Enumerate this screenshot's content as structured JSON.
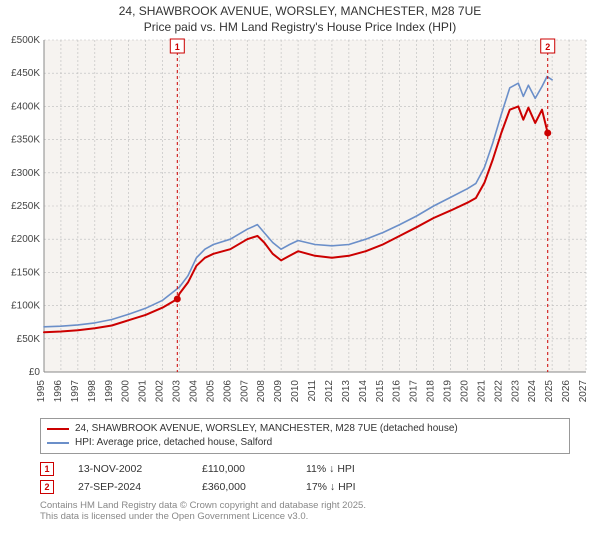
{
  "title_line1": "24, SHAWBROOK AVENUE, WORSLEY, MANCHESTER, M28 7UE",
  "title_line2": "Price paid vs. HM Land Registry's House Price Index (HPI)",
  "chart": {
    "type": "line",
    "plot_bg": "#f6f3f0",
    "page_bg": "#ffffff",
    "grid_color": "#bbbbbb",
    "axis_color": "#888888",
    "x_years": [
      1995,
      1996,
      1997,
      1998,
      1999,
      2000,
      2001,
      2002,
      2003,
      2004,
      2005,
      2006,
      2007,
      2008,
      2009,
      2010,
      2011,
      2012,
      2013,
      2014,
      2015,
      2016,
      2017,
      2018,
      2019,
      2020,
      2021,
      2022,
      2023,
      2024,
      2025,
      2026,
      2027
    ],
    "x_min": 1995,
    "x_max": 2027,
    "y_ticks": [
      0,
      50000,
      100000,
      150000,
      200000,
      250000,
      300000,
      350000,
      400000,
      450000,
      500000
    ],
    "y_tick_labels": [
      "£0",
      "£50K",
      "£100K",
      "£150K",
      "£200K",
      "£250K",
      "£300K",
      "£350K",
      "£400K",
      "£450K",
      "£500K"
    ],
    "y_min": 0,
    "y_max": 500000,
    "x_tick_fontsize": 10,
    "y_tick_fontsize": 10,
    "series": [
      {
        "name": "price_paid",
        "label": "24, SHAWBROOK AVENUE, WORSLEY, MANCHESTER, M28 7UE (detached house)",
        "color": "#cc0000",
        "width": 2,
        "points": [
          [
            1995.0,
            60000
          ],
          [
            1996.0,
            61000
          ],
          [
            1997.0,
            63000
          ],
          [
            1998.0,
            66000
          ],
          [
            1999.0,
            70000
          ],
          [
            2000.0,
            78000
          ],
          [
            2001.0,
            86000
          ],
          [
            2002.0,
            97000
          ],
          [
            2002.87,
            110000
          ],
          [
            2003.0,
            118000
          ],
          [
            2003.5,
            135000
          ],
          [
            2004.0,
            160000
          ],
          [
            2004.5,
            172000
          ],
          [
            2005.0,
            178000
          ],
          [
            2006.0,
            185000
          ],
          [
            2007.0,
            200000
          ],
          [
            2007.6,
            205000
          ],
          [
            2008.0,
            195000
          ],
          [
            2008.5,
            178000
          ],
          [
            2009.0,
            168000
          ],
          [
            2009.5,
            175000
          ],
          [
            2010.0,
            182000
          ],
          [
            2011.0,
            175000
          ],
          [
            2012.0,
            172000
          ],
          [
            2013.0,
            175000
          ],
          [
            2014.0,
            182000
          ],
          [
            2015.0,
            192000
          ],
          [
            2016.0,
            205000
          ],
          [
            2017.0,
            218000
          ],
          [
            2018.0,
            232000
          ],
          [
            2019.0,
            243000
          ],
          [
            2020.0,
            255000
          ],
          [
            2020.5,
            262000
          ],
          [
            2021.0,
            285000
          ],
          [
            2021.5,
            320000
          ],
          [
            2022.0,
            360000
          ],
          [
            2022.5,
            395000
          ],
          [
            2023.0,
            400000
          ],
          [
            2023.3,
            380000
          ],
          [
            2023.6,
            398000
          ],
          [
            2024.0,
            375000
          ],
          [
            2024.4,
            395000
          ],
          [
            2024.74,
            360000
          ]
        ]
      },
      {
        "name": "hpi",
        "label": "HPI: Average price, detached house, Salford",
        "color": "#6b8fc9",
        "width": 1.6,
        "points": [
          [
            1995.0,
            68000
          ],
          [
            1996.0,
            69000
          ],
          [
            1997.0,
            71000
          ],
          [
            1998.0,
            74000
          ],
          [
            1999.0,
            79000
          ],
          [
            2000.0,
            87000
          ],
          [
            2001.0,
            96000
          ],
          [
            2002.0,
            108000
          ],
          [
            2003.0,
            128000
          ],
          [
            2003.5,
            145000
          ],
          [
            2004.0,
            172000
          ],
          [
            2004.5,
            185000
          ],
          [
            2005.0,
            192000
          ],
          [
            2006.0,
            200000
          ],
          [
            2007.0,
            215000
          ],
          [
            2007.6,
            222000
          ],
          [
            2008.0,
            210000
          ],
          [
            2008.5,
            195000
          ],
          [
            2009.0,
            185000
          ],
          [
            2009.5,
            192000
          ],
          [
            2010.0,
            198000
          ],
          [
            2011.0,
            192000
          ],
          [
            2012.0,
            190000
          ],
          [
            2013.0,
            192000
          ],
          [
            2014.0,
            200000
          ],
          [
            2015.0,
            210000
          ],
          [
            2016.0,
            222000
          ],
          [
            2017.0,
            235000
          ],
          [
            2018.0,
            250000
          ],
          [
            2019.0,
            263000
          ],
          [
            2020.0,
            276000
          ],
          [
            2020.5,
            284000
          ],
          [
            2021.0,
            308000
          ],
          [
            2021.5,
            345000
          ],
          [
            2022.0,
            388000
          ],
          [
            2022.5,
            428000
          ],
          [
            2023.0,
            435000
          ],
          [
            2023.3,
            415000
          ],
          [
            2023.6,
            432000
          ],
          [
            2024.0,
            412000
          ],
          [
            2024.4,
            430000
          ],
          [
            2024.7,
            445000
          ],
          [
            2025.0,
            440000
          ]
        ]
      }
    ],
    "sale_markers": [
      {
        "n": "1",
        "year": 2002.87,
        "price": 110000
      },
      {
        "n": "2",
        "year": 2024.74,
        "price": 360000
      }
    ],
    "marker_line_color": "#cc0000",
    "marker_box_border": "#cc0000",
    "marker_text_color": "#cc0000"
  },
  "legend": {
    "items": [
      {
        "color": "#cc0000",
        "label": "24, SHAWBROOK AVENUE, WORSLEY, MANCHESTER, M28 7UE (detached house)"
      },
      {
        "color": "#6b8fc9",
        "label": "HPI: Average price, detached house, Salford"
      }
    ]
  },
  "sales": [
    {
      "n": "1",
      "date": "13-NOV-2002",
      "price": "£110,000",
      "diff": "11% ↓ HPI"
    },
    {
      "n": "2",
      "date": "27-SEP-2024",
      "price": "£360,000",
      "diff": "17% ↓ HPI"
    }
  ],
  "footer_line1": "Contains HM Land Registry data © Crown copyright and database right 2025.",
  "footer_line2": "This data is licensed under the Open Government Licence v3.0."
}
